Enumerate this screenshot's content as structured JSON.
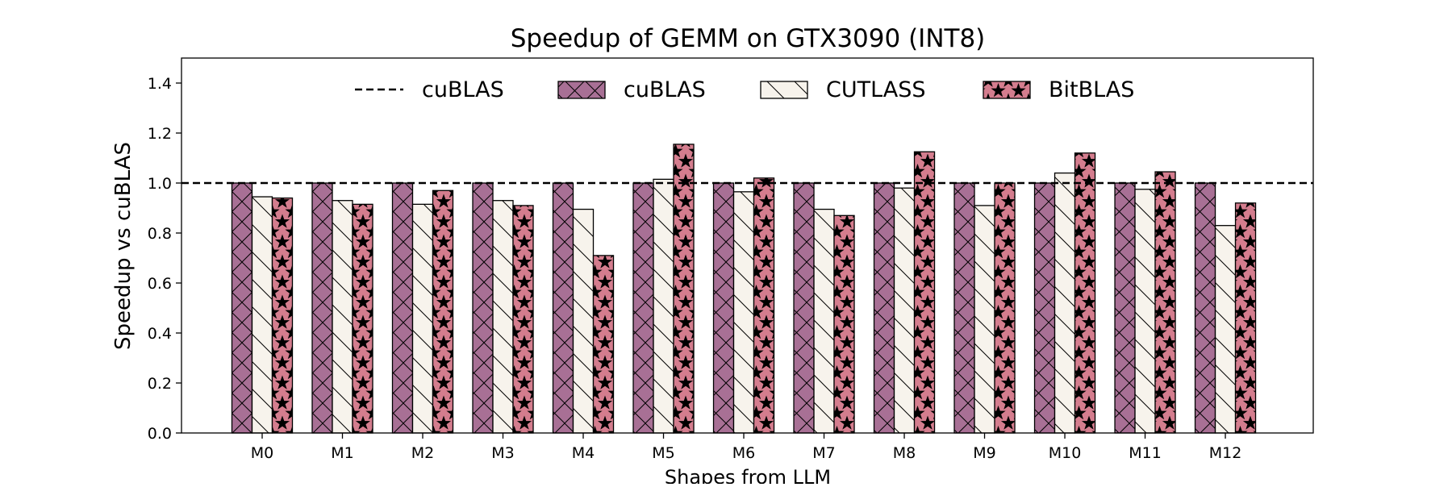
{
  "chart_data": {
    "type": "bar",
    "title": "Speedup of GEMM on GTX3090 (INT8)",
    "xlabel": "Shapes from LLM",
    "ylabel": "Speedup vs cuBLAS",
    "ylim": [
      0,
      1.5
    ],
    "yticks": [
      "0.0",
      "0.2",
      "0.4",
      "0.6",
      "0.8",
      "1.0",
      "1.2",
      "1.4"
    ],
    "reference_line": {
      "name": "cuBLAS",
      "value": 1.0,
      "style": "dashed"
    },
    "legend_position": "top-center",
    "grid": false,
    "categories": [
      "M0",
      "M1",
      "M2",
      "M3",
      "M4",
      "M5",
      "M6",
      "M7",
      "M8",
      "M9",
      "M10",
      "M11",
      "M12"
    ],
    "series": [
      {
        "name": "cuBLAS",
        "color": "#a87095",
        "hatch": "cross",
        "values": [
          1.0,
          1.0,
          1.0,
          1.0,
          1.0,
          1.0,
          1.0,
          1.0,
          1.0,
          1.0,
          1.0,
          1.0,
          1.0
        ]
      },
      {
        "name": "CUTLASS",
        "color": "#f7f3ec",
        "hatch": "backslash",
        "values": [
          0.945,
          0.93,
          0.915,
          0.93,
          0.895,
          1.015,
          0.965,
          0.895,
          0.98,
          0.91,
          1.04,
          0.975,
          0.83
        ]
      },
      {
        "name": "BitBLAS",
        "color": "#d47d8e",
        "hatch": "star",
        "values": [
          0.94,
          0.915,
          0.97,
          0.91,
          0.71,
          1.155,
          1.02,
          0.87,
          1.125,
          1.0,
          1.12,
          1.045,
          0.92
        ]
      }
    ]
  }
}
